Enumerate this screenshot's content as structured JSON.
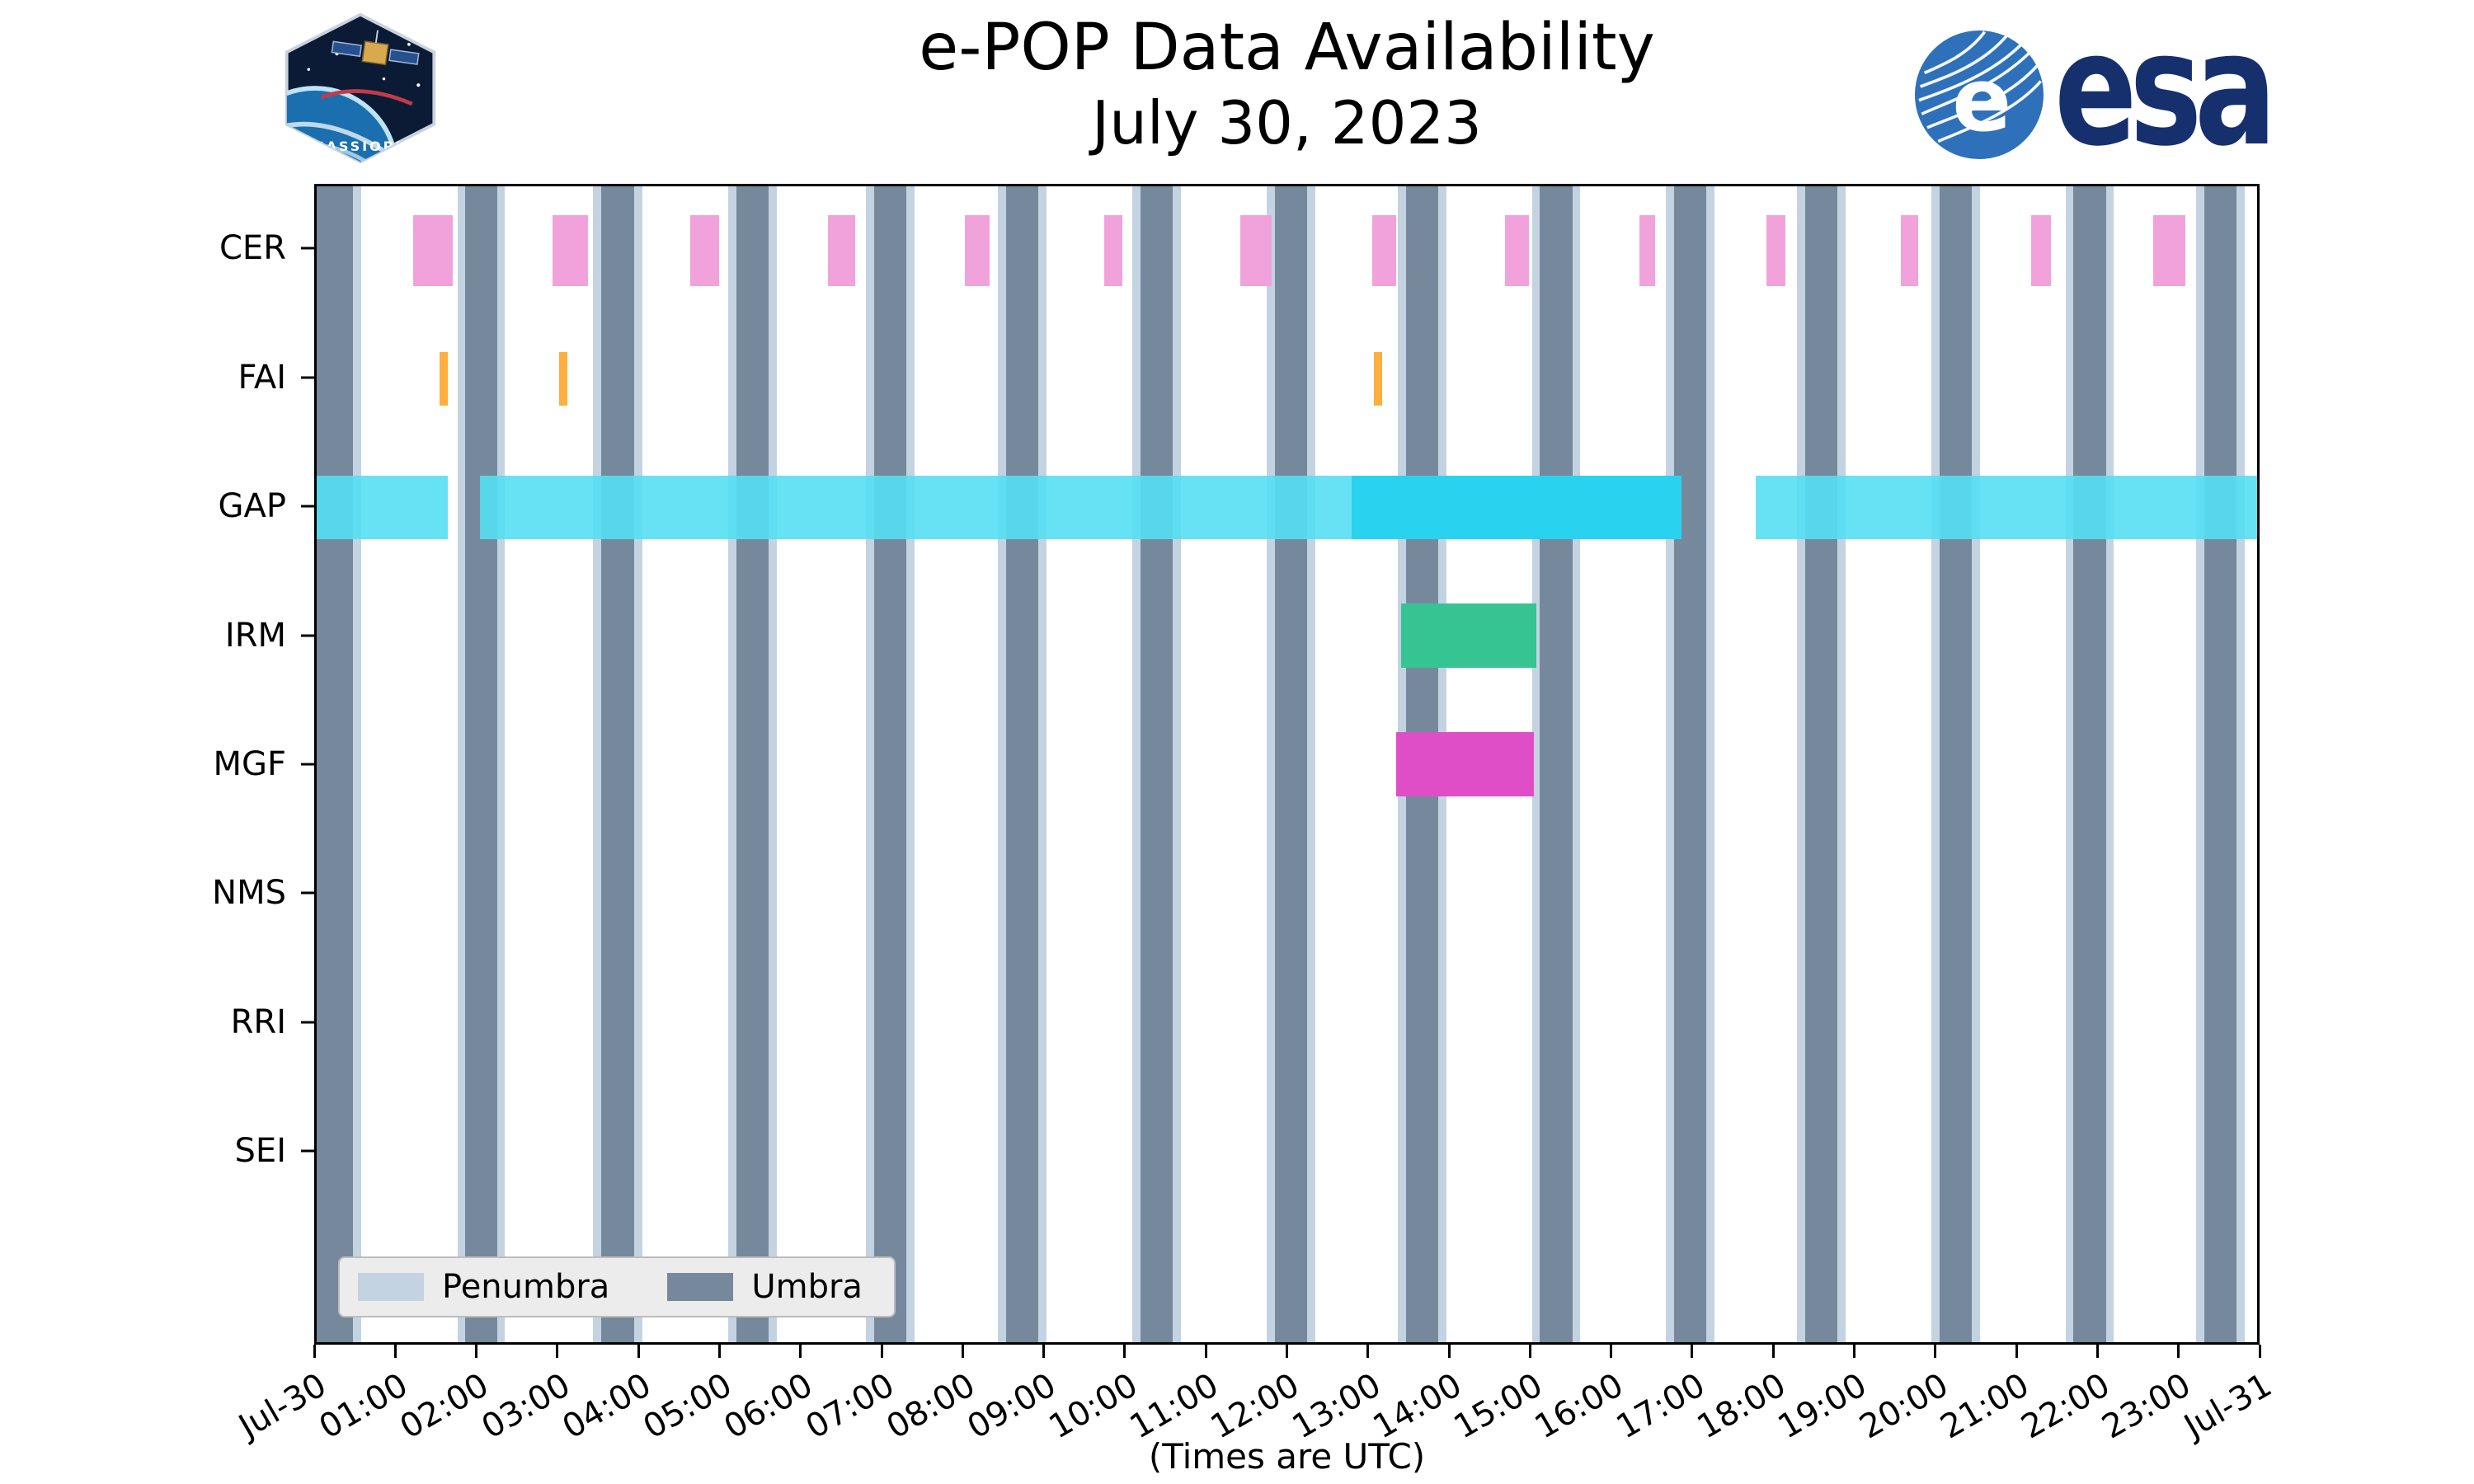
{
  "header": {
    "cassiope_label": "CASSIOPE",
    "esa_wordmark": "esa",
    "esa_emblem_letter": "e"
  },
  "chart_data": {
    "type": "timeline",
    "title": "e-POP Data Availability",
    "subtitle": "July 30, 2023",
    "xlabel": "(Times are UTC)",
    "x_range_hours": [
      0,
      24
    ],
    "x_ticks": [
      {
        "hour": 0,
        "label": "Jul-30"
      },
      {
        "hour": 1,
        "label": "01:00"
      },
      {
        "hour": 2,
        "label": "02:00"
      },
      {
        "hour": 3,
        "label": "03:00"
      },
      {
        "hour": 4,
        "label": "04:00"
      },
      {
        "hour": 5,
        "label": "05:00"
      },
      {
        "hour": 6,
        "label": "06:00"
      },
      {
        "hour": 7,
        "label": "07:00"
      },
      {
        "hour": 8,
        "label": "08:00"
      },
      {
        "hour": 9,
        "label": "09:00"
      },
      {
        "hour": 10,
        "label": "10:00"
      },
      {
        "hour": 11,
        "label": "11:00"
      },
      {
        "hour": 12,
        "label": "12:00"
      },
      {
        "hour": 13,
        "label": "13:00"
      },
      {
        "hour": 14,
        "label": "14:00"
      },
      {
        "hour": 15,
        "label": "15:00"
      },
      {
        "hour": 16,
        "label": "16:00"
      },
      {
        "hour": 17,
        "label": "17:00"
      },
      {
        "hour": 18,
        "label": "18:00"
      },
      {
        "hour": 19,
        "label": "19:00"
      },
      {
        "hour": 20,
        "label": "20:00"
      },
      {
        "hour": 21,
        "label": "21:00"
      },
      {
        "hour": 22,
        "label": "22:00"
      },
      {
        "hour": 23,
        "label": "23:00"
      },
      {
        "hour": 24,
        "label": "Jul-31"
      }
    ],
    "rows": [
      "CER",
      "FAI",
      "GAP",
      "IRM",
      "MGF",
      "NMS",
      "RRI",
      "SEI"
    ],
    "legend": [
      {
        "label": "Penumbra",
        "color_key": "penumbra"
      },
      {
        "label": "Umbra",
        "color_key": "umbra"
      }
    ],
    "colors": {
      "umbra": "#76899C",
      "penumbra": "#C3D3E2",
      "CER": "#F2A2DB",
      "FAI": "#FFAE3F",
      "GAP": "#55DFF3",
      "GAP_dark": "#29D2EF",
      "IRM": "#35C492",
      "MGF": "#DF4EC6",
      "axis": "#000000"
    },
    "penumbra_pad_hours": 0.1,
    "umbra_intervals": [
      [
        0.0,
        0.45
      ],
      [
        1.84,
        2.23
      ],
      [
        3.52,
        3.93
      ],
      [
        5.19,
        5.59
      ],
      [
        6.89,
        7.29
      ],
      [
        8.53,
        8.93
      ],
      [
        10.19,
        10.59
      ],
      [
        11.85,
        12.25
      ],
      [
        13.47,
        13.87
      ],
      [
        15.13,
        15.53
      ],
      [
        16.79,
        17.19
      ],
      [
        18.41,
        18.81
      ],
      [
        20.07,
        20.47
      ],
      [
        21.73,
        22.13
      ],
      [
        23.35,
        23.75
      ]
    ],
    "series": {
      "CER": [
        [
          1.19,
          1.68
        ],
        [
          2.92,
          3.36
        ],
        [
          4.62,
          4.98
        ],
        [
          6.32,
          6.66
        ],
        [
          8.02,
          8.32
        ],
        [
          9.74,
          9.97
        ],
        [
          11.42,
          11.81
        ],
        [
          13.06,
          13.35
        ],
        [
          14.7,
          14.99
        ],
        [
          16.36,
          16.55
        ],
        [
          17.93,
          18.17
        ],
        [
          19.59,
          19.81
        ],
        [
          21.21,
          21.45
        ],
        [
          22.71,
          23.11
        ]
      ],
      "FAI": [
        [
          1.52,
          1.62
        ],
        [
          3.0,
          3.1
        ],
        [
          13.08,
          13.18
        ]
      ],
      "GAP": [
        {
          "start": 0.0,
          "end": 1.62,
          "shade": "light"
        },
        {
          "start": 2.02,
          "end": 16.88,
          "shade": "light"
        },
        {
          "start": 12.8,
          "end": 16.88,
          "shade": "dark"
        },
        {
          "start": 17.8,
          "end": 24.0,
          "shade": "light"
        }
      ],
      "IRM": [
        [
          13.41,
          15.09
        ]
      ],
      "MGF": [
        [
          13.35,
          15.05
        ]
      ],
      "NMS": [],
      "RRI": [],
      "SEI": []
    }
  }
}
